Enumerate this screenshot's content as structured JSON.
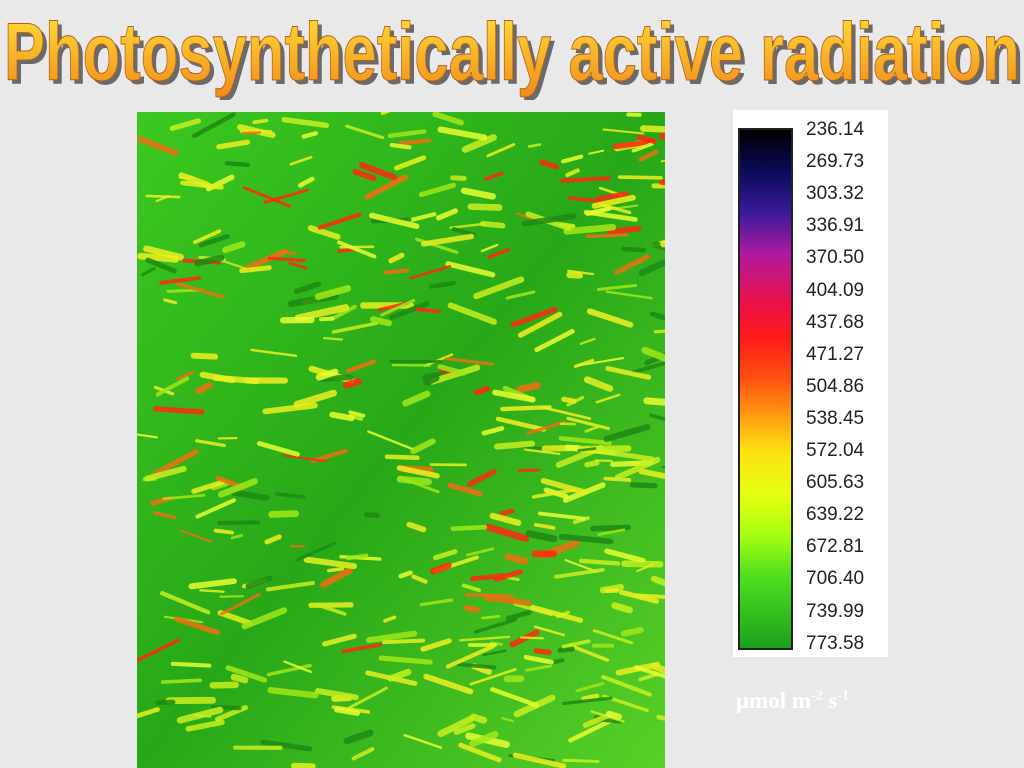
{
  "title": "Photosynthetically active radiation",
  "legend": {
    "labels": [
      "236.14",
      "269.73",
      "303.32",
      "336.91",
      "370.50",
      "404.09",
      "437.68",
      "471.27",
      "504.86",
      "538.45",
      "572.04",
      "605.63",
      "639.22",
      "672.81",
      "706.40",
      "739.99",
      "773.58"
    ]
  },
  "unit": {
    "base": "μmol m",
    "exp1": "-2",
    "s": "s",
    "exp2": "-1"
  }
}
